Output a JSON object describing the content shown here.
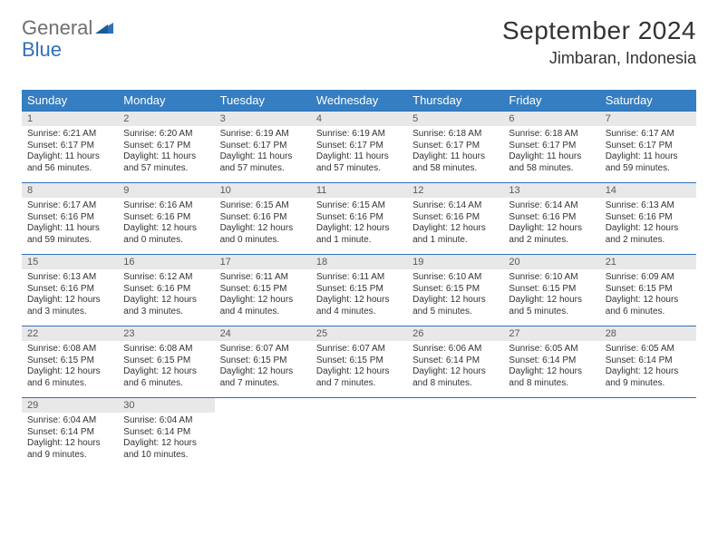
{
  "brand": {
    "general": "General",
    "blue": "Blue"
  },
  "title": "September 2024",
  "location": "Jimbaran, Indonesia",
  "dayHeaders": [
    "Sunday",
    "Monday",
    "Tuesday",
    "Wednesday",
    "Thursday",
    "Friday",
    "Saturday"
  ],
  "colors": {
    "header_bg": "#357ec1",
    "header_text": "#ffffff",
    "border": "#2f71b8",
    "daynum_bg": "#e8e8e9",
    "text": "#333333",
    "logo_gray": "#6f6f6f",
    "logo_blue": "#2f71b8"
  },
  "weeks": [
    [
      {
        "n": "1",
        "sr": "6:21 AM",
        "ss": "6:17 PM",
        "dl": "11 hours and 56 minutes."
      },
      {
        "n": "2",
        "sr": "6:20 AM",
        "ss": "6:17 PM",
        "dl": "11 hours and 57 minutes."
      },
      {
        "n": "3",
        "sr": "6:19 AM",
        "ss": "6:17 PM",
        "dl": "11 hours and 57 minutes."
      },
      {
        "n": "4",
        "sr": "6:19 AM",
        "ss": "6:17 PM",
        "dl": "11 hours and 57 minutes."
      },
      {
        "n": "5",
        "sr": "6:18 AM",
        "ss": "6:17 PM",
        "dl": "11 hours and 58 minutes."
      },
      {
        "n": "6",
        "sr": "6:18 AM",
        "ss": "6:17 PM",
        "dl": "11 hours and 58 minutes."
      },
      {
        "n": "7",
        "sr": "6:17 AM",
        "ss": "6:17 PM",
        "dl": "11 hours and 59 minutes."
      }
    ],
    [
      {
        "n": "8",
        "sr": "6:17 AM",
        "ss": "6:16 PM",
        "dl": "11 hours and 59 minutes."
      },
      {
        "n": "9",
        "sr": "6:16 AM",
        "ss": "6:16 PM",
        "dl": "12 hours and 0 minutes."
      },
      {
        "n": "10",
        "sr": "6:15 AM",
        "ss": "6:16 PM",
        "dl": "12 hours and 0 minutes."
      },
      {
        "n": "11",
        "sr": "6:15 AM",
        "ss": "6:16 PM",
        "dl": "12 hours and 1 minute."
      },
      {
        "n": "12",
        "sr": "6:14 AM",
        "ss": "6:16 PM",
        "dl": "12 hours and 1 minute."
      },
      {
        "n": "13",
        "sr": "6:14 AM",
        "ss": "6:16 PM",
        "dl": "12 hours and 2 minutes."
      },
      {
        "n": "14",
        "sr": "6:13 AM",
        "ss": "6:16 PM",
        "dl": "12 hours and 2 minutes."
      }
    ],
    [
      {
        "n": "15",
        "sr": "6:13 AM",
        "ss": "6:16 PM",
        "dl": "12 hours and 3 minutes."
      },
      {
        "n": "16",
        "sr": "6:12 AM",
        "ss": "6:16 PM",
        "dl": "12 hours and 3 minutes."
      },
      {
        "n": "17",
        "sr": "6:11 AM",
        "ss": "6:15 PM",
        "dl": "12 hours and 4 minutes."
      },
      {
        "n": "18",
        "sr": "6:11 AM",
        "ss": "6:15 PM",
        "dl": "12 hours and 4 minutes."
      },
      {
        "n": "19",
        "sr": "6:10 AM",
        "ss": "6:15 PM",
        "dl": "12 hours and 5 minutes."
      },
      {
        "n": "20",
        "sr": "6:10 AM",
        "ss": "6:15 PM",
        "dl": "12 hours and 5 minutes."
      },
      {
        "n": "21",
        "sr": "6:09 AM",
        "ss": "6:15 PM",
        "dl": "12 hours and 6 minutes."
      }
    ],
    [
      {
        "n": "22",
        "sr": "6:08 AM",
        "ss": "6:15 PM",
        "dl": "12 hours and 6 minutes."
      },
      {
        "n": "23",
        "sr": "6:08 AM",
        "ss": "6:15 PM",
        "dl": "12 hours and 6 minutes."
      },
      {
        "n": "24",
        "sr": "6:07 AM",
        "ss": "6:15 PM",
        "dl": "12 hours and 7 minutes."
      },
      {
        "n": "25",
        "sr": "6:07 AM",
        "ss": "6:15 PM",
        "dl": "12 hours and 7 minutes."
      },
      {
        "n": "26",
        "sr": "6:06 AM",
        "ss": "6:14 PM",
        "dl": "12 hours and 8 minutes."
      },
      {
        "n": "27",
        "sr": "6:05 AM",
        "ss": "6:14 PM",
        "dl": "12 hours and 8 minutes."
      },
      {
        "n": "28",
        "sr": "6:05 AM",
        "ss": "6:14 PM",
        "dl": "12 hours and 9 minutes."
      }
    ],
    [
      {
        "n": "29",
        "sr": "6:04 AM",
        "ss": "6:14 PM",
        "dl": "12 hours and 9 minutes."
      },
      {
        "n": "30",
        "sr": "6:04 AM",
        "ss": "6:14 PM",
        "dl": "12 hours and 10 minutes."
      },
      null,
      null,
      null,
      null,
      null
    ]
  ],
  "labels": {
    "sunrise": "Sunrise: ",
    "sunset": "Sunset: ",
    "daylight": "Daylight: "
  }
}
